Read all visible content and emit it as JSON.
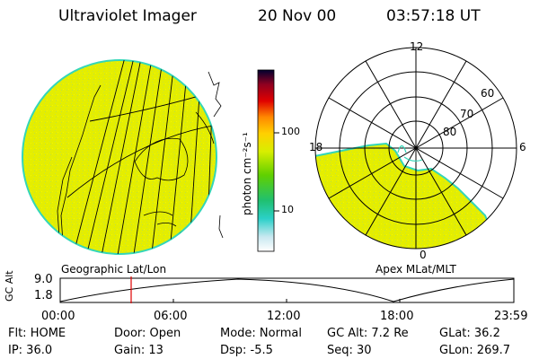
{
  "header": {
    "title": "Ultraviolet Imager",
    "date": "20 Nov 00",
    "time": "03:57:18 UT"
  },
  "left_panel": {
    "caption": "Geographic Lat/Lon"
  },
  "colorbar": {
    "label": "photon cm⁻²s⁻¹",
    "ticks": [
      "100",
      "10"
    ]
  },
  "right_panel": {
    "caption": "Apex MLat/MLT",
    "mlt_labels": [
      "12",
      "18",
      "6",
      "0"
    ],
    "mlat_labels": [
      "60",
      "70",
      "80"
    ]
  },
  "timeline": {
    "ylabel": "GC Alt",
    "yticks": [
      "9.0",
      "1.8"
    ],
    "xticks": [
      "00:00",
      "06:00",
      "12:00",
      "18:00",
      "23:59"
    ],
    "cursor_time": "03:57"
  },
  "info": {
    "row1": {
      "flt": "Flt: HOME",
      "door": "Door: Open",
      "mode": "Mode: Normal",
      "gcalt": "GC Alt: 7.2 Re",
      "glat": "GLat:  36.2"
    },
    "row2": {
      "ip": "IP: 36.0",
      "gain": "Gain: 13",
      "dsp": "Dsp:    -5.5",
      "seq": "Seq: 30",
      "glon": "GLon: 269.7"
    }
  },
  "colors": {
    "image_fill": "#e6f000",
    "image_edge": "#34d6b8",
    "cursor": "#e00000"
  }
}
